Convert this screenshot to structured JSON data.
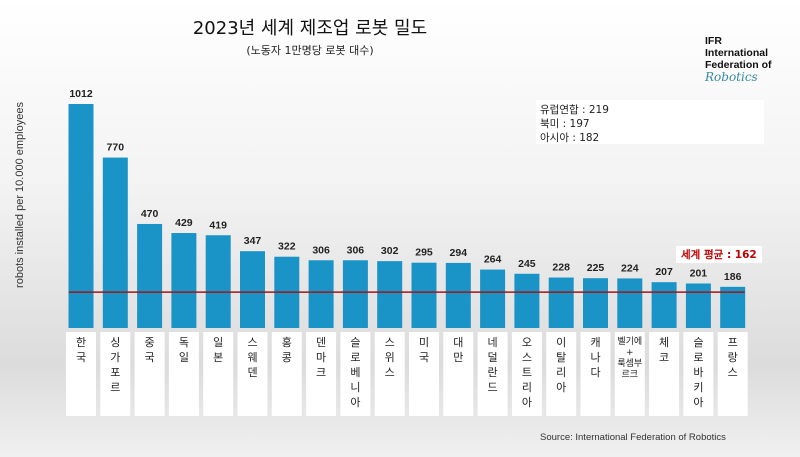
{
  "chart_data": {
    "type": "bar",
    "title": "2023년 세계 제조업 로봇 밀도",
    "subtitle": "(노동자 1만명당 로봇 대수)",
    "ylabel": "robots installed per 10.000 employees",
    "categories": [
      "한국",
      "싱가포르",
      "중국",
      "독일",
      "일본",
      "스웨덴",
      "홍콩",
      "덴마크",
      "슬로베니아",
      "스위스",
      "미국",
      "대만",
      "네덜란드",
      "오스트리아",
      "이탈리아",
      "캐나다",
      "벨기에 + 룩셈부르크",
      "체코",
      "슬로바키아",
      "프랑스"
    ],
    "values": [
      1012,
      770,
      470,
      429,
      419,
      347,
      322,
      306,
      306,
      302,
      295,
      294,
      264,
      245,
      228,
      225,
      224,
      207,
      201,
      186
    ],
    "ylim": [
      0,
      1012
    ],
    "grid": false,
    "bar_color": "#1a93c6",
    "reference_line": {
      "label": "세계 평균 : 162",
      "value": 162,
      "color": "#a31515"
    },
    "annotations": [
      "유럽연합 : 219",
      "북미 : 197",
      "아시아 : 182"
    ],
    "source": "Source: International Federation of Robotics"
  },
  "logo": {
    "line1": "IFR",
    "line2": "International",
    "line3": "Federation of",
    "line4": "Robotics"
  }
}
